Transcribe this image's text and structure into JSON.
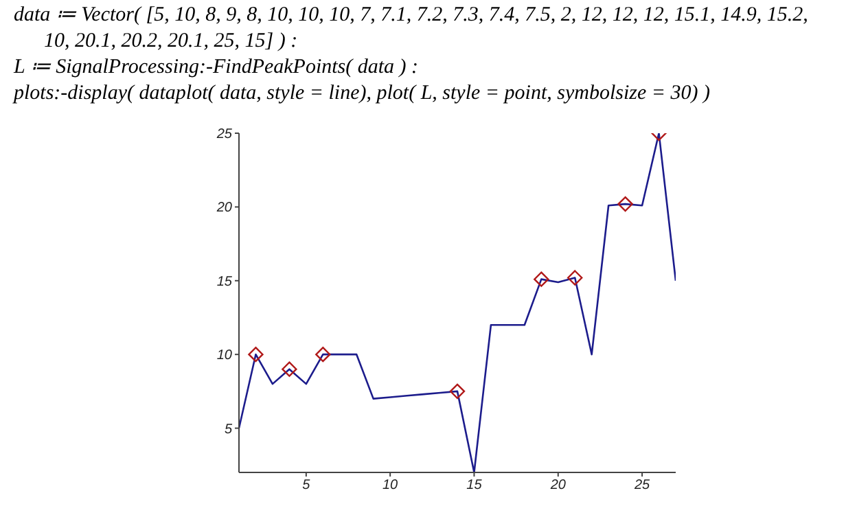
{
  "chart_data": {
    "type": "line",
    "annotations": [
      "data ≔ Vector( [5, 10, 8, 9, 8, 10, 10, 10, 7, 7.1, 7.2, 7.3, 7.4, 7.5, 2, 12, 12, 12, 15.1, 14.9, 15.2, 10, 20.1, 20.2, 20.1, 25, 15] ) :",
      "L ≔ SignalProcessing:-FindPeakPoints( data ) :",
      "plots:-display( dataplot( data, style = line), plot( L, style = point, symbolsize = 30) )"
    ],
    "xlim": [
      1,
      27
    ],
    "xticks": [
      5,
      10,
      15,
      20,
      25
    ],
    "ylim": [
      2,
      25
    ],
    "yticks": [
      5,
      10,
      15,
      20,
      25
    ],
    "series": [
      {
        "color": "#1c1c8c",
        "x": [
          1,
          2,
          3,
          4,
          5,
          6,
          7,
          8,
          9,
          10,
          11,
          12,
          13,
          14,
          15,
          16,
          17,
          18,
          19,
          20,
          21,
          22,
          23,
          24,
          25,
          26,
          27
        ],
        "values": [
          5,
          10,
          8,
          9,
          8,
          10,
          10,
          10,
          7,
          7.1,
          7.2,
          7.3,
          7.4,
          7.5,
          2,
          12,
          12,
          12,
          15.1,
          14.9,
          15.2,
          10,
          20.1,
          20.2,
          20.1,
          25,
          15
        ]
      },
      {
        "type": "scatter",
        "marker": "diamond",
        "color": "#b01818",
        "x": [
          2,
          4,
          6,
          14,
          19,
          21,
          24,
          26
        ],
        "values": [
          10,
          9,
          10,
          7.5,
          15.1,
          15.2,
          20.2,
          25
        ]
      }
    ]
  }
}
